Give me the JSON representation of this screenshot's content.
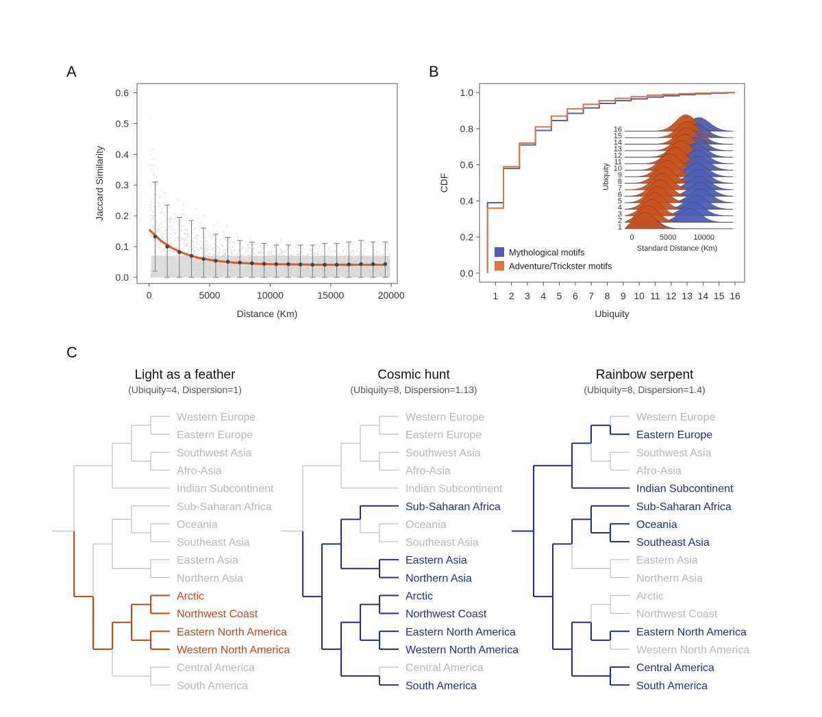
{
  "colors": {
    "orange": "#e25a1c",
    "orange_dark": "#c9450e",
    "blue": "#1f2f8a",
    "blue_fill": "#4d5fb4",
    "grey": "#bdbdbd",
    "leaf_grey": "#b8b8b8",
    "scatter": "#d0d0d0"
  },
  "panels": {
    "a": "A",
    "b": "B",
    "c": "C"
  },
  "chart_data": [
    {
      "id": "A",
      "type": "scatter",
      "title": "",
      "xlabel": "Distance (Km)",
      "ylabel": "Jaccard Similarity",
      "xlim": [
        -1000,
        20500
      ],
      "ylim": [
        -0.02,
        0.63
      ],
      "xticks": [
        0,
        5000,
        10000,
        15000,
        20000
      ],
      "xtick_labels": [
        "0",
        "5000",
        "10000",
        "15000",
        "20000"
      ],
      "yticks": [
        0.0,
        0.1,
        0.2,
        0.3,
        0.4,
        0.5,
        0.6
      ],
      "ytick_labels": [
        "0.0",
        "0.1",
        "0.2",
        "0.3",
        "0.4",
        "0.5",
        "0.6"
      ],
      "bins_x": [
        500,
        1500,
        2500,
        3500,
        4500,
        5500,
        6500,
        7500,
        8500,
        9500,
        10500,
        11500,
        12500,
        13500,
        14500,
        15500,
        16500,
        17500,
        18500,
        19500
      ],
      "bins_mean": [
        0.133,
        0.1,
        0.082,
        0.07,
        0.06,
        0.054,
        0.051,
        0.048,
        0.046,
        0.044,
        0.043,
        0.043,
        0.042,
        0.041,
        0.041,
        0.041,
        0.042,
        0.043,
        0.043,
        0.043
      ],
      "bins_upper": [
        0.31,
        0.235,
        0.195,
        0.185,
        0.16,
        0.14,
        0.13,
        0.12,
        0.115,
        0.11,
        0.105,
        0.105,
        0.105,
        0.105,
        0.11,
        0.11,
        0.115,
        0.12,
        0.115,
        0.115
      ],
      "bins_lower": [
        0.02,
        0.0,
        0.0,
        0.0,
        0.0,
        0.0,
        0.0,
        0.0,
        0.0,
        0.0,
        0.0,
        0.0,
        0.0,
        0.0,
        0.0,
        0.0,
        0.0,
        0.0,
        0.0,
        0.0
      ],
      "fit_curve": {
        "x": [
          0,
          1000,
          2000,
          3000,
          4000,
          5000,
          6000,
          7000,
          8000,
          9000,
          10000,
          12000,
          14000,
          16000,
          18000,
          19500
        ],
        "y": [
          0.155,
          0.118,
          0.093,
          0.076,
          0.064,
          0.057,
          0.052,
          0.048,
          0.046,
          0.044,
          0.043,
          0.042,
          0.041,
          0.041,
          0.041,
          0.041
        ]
      }
    },
    {
      "id": "B",
      "type": "line",
      "title": "",
      "xlabel": "Ubiquity",
      "ylabel": "CDF",
      "xlim": [
        0,
        16.6
      ],
      "ylim": [
        -0.05,
        1.05
      ],
      "categories": [
        "1",
        "2",
        "3",
        "4",
        "5",
        "6",
        "7",
        "8",
        "9",
        "10",
        "11",
        "12",
        "13",
        "14",
        "15",
        "16"
      ],
      "yticks": [
        0.0,
        0.2,
        0.4,
        0.6,
        0.8,
        1.0
      ],
      "ytick_labels": [
        "0.0",
        "0.2",
        "0.4",
        "0.6",
        "0.8",
        "1.0"
      ],
      "series": [
        {
          "name": "Mythological motifs",
          "color": "#4d5fb4",
          "values": [
            0.39,
            0.58,
            0.71,
            0.79,
            0.845,
            0.885,
            0.915,
            0.94,
            0.955,
            0.965,
            0.975,
            0.982,
            0.988,
            0.993,
            0.997,
            1.0
          ]
        },
        {
          "name": "Adventure/Trickster motifs",
          "color": "#e0743d",
          "values": [
            0.36,
            0.59,
            0.72,
            0.81,
            0.87,
            0.91,
            0.935,
            0.955,
            0.968,
            0.977,
            0.985,
            0.99,
            0.994,
            0.997,
            0.999,
            1.0
          ]
        }
      ],
      "inset": {
        "type": "ridgeline",
        "xlabel": "Standard Distance (Km)",
        "ylabel": "Ubiquity",
        "xlim": [
          -1000,
          14500
        ],
        "xticks": [
          0,
          5000,
          10000
        ],
        "xtick_labels": [
          "0",
          "5000",
          "10000"
        ],
        "rows": [
          "1",
          "2",
          "3",
          "4",
          "5",
          "6",
          "7",
          "8",
          "9",
          "10",
          "11",
          "12",
          "13",
          "14",
          "15",
          "16"
        ],
        "orange_peak": [
          1800,
          2300,
          2800,
          3200,
          3600,
          3900,
          4200,
          4500,
          4900,
          5300,
          6000,
          6800,
          7300,
          7600,
          7700,
          7500
        ],
        "blue_peak": [
          2000,
          8000,
          8500,
          9000,
          9500,
          9500,
          9300,
          9200,
          9000,
          9200,
          9000,
          8800,
          8700,
          8600,
          8900,
          9300
        ]
      }
    }
  ],
  "trees": [
    {
      "title": "Light as a feather",
      "subtitle": "(Ubiquity=4, Dispersion=1)",
      "highlight": "orange",
      "leaves": [
        {
          "label": "Western Europe",
          "on": false
        },
        {
          "label": "Eastern Europe",
          "on": false
        },
        {
          "label": "Southwest Asia",
          "on": false
        },
        {
          "label": "Afro-Asia",
          "on": false
        },
        {
          "label": "Indian Subcontinent",
          "on": false
        },
        {
          "label": "Sub-Saharan Africa",
          "on": false
        },
        {
          "label": "Oceania",
          "on": false
        },
        {
          "label": "Southeast Asia",
          "on": false
        },
        {
          "label": "Eastern Asia",
          "on": false
        },
        {
          "label": "Northern Asia",
          "on": false
        },
        {
          "label": "Arctic",
          "on": true
        },
        {
          "label": "Northwest Coast",
          "on": true
        },
        {
          "label": "Eastern North America",
          "on": true
        },
        {
          "label": "Western North America",
          "on": true
        },
        {
          "label": "Central America",
          "on": false
        },
        {
          "label": "South America",
          "on": false
        }
      ]
    },
    {
      "title": "Cosmic hunt",
      "subtitle": "(Ubiquity=8, Dispersion=1.13)",
      "highlight": "blue",
      "leaves": [
        {
          "label": "Western Europe",
          "on": false
        },
        {
          "label": "Eastern Europe",
          "on": false
        },
        {
          "label": "Southwest Asia",
          "on": false
        },
        {
          "label": "Afro-Asia",
          "on": false
        },
        {
          "label": "Indian Subcontinent",
          "on": false
        },
        {
          "label": "Sub-Saharan Africa",
          "on": true
        },
        {
          "label": "Oceania",
          "on": false
        },
        {
          "label": "Southeast Asia",
          "on": false
        },
        {
          "label": "Eastern Asia",
          "on": true
        },
        {
          "label": "Northern Asia",
          "on": true
        },
        {
          "label": "Arctic",
          "on": true
        },
        {
          "label": "Northwest Coast",
          "on": true
        },
        {
          "label": "Eastern North America",
          "on": true
        },
        {
          "label": "Western North America",
          "on": true
        },
        {
          "label": "Central America",
          "on": false
        },
        {
          "label": "South America",
          "on": true
        }
      ]
    },
    {
      "title": "Rainbow serpent",
      "subtitle": "(Ubiquity=8, Dispersion=1.4)",
      "highlight": "blue",
      "leaves": [
        {
          "label": "Western Europe",
          "on": false
        },
        {
          "label": "Eastern Europe",
          "on": true
        },
        {
          "label": "Southwest Asia",
          "on": false
        },
        {
          "label": "Afro-Asia",
          "on": false
        },
        {
          "label": "Indian Subcontinent",
          "on": true
        },
        {
          "label": "Sub-Saharan Africa",
          "on": true
        },
        {
          "label": "Oceania",
          "on": true
        },
        {
          "label": "Southeast Asia",
          "on": true
        },
        {
          "label": "Eastern Asia",
          "on": false
        },
        {
          "label": "Northern Asia",
          "on": false
        },
        {
          "label": "Arctic",
          "on": false
        },
        {
          "label": "Northwest Coast",
          "on": false
        },
        {
          "label": "Eastern North America",
          "on": true
        },
        {
          "label": "Western North America",
          "on": false
        },
        {
          "label": "Central America",
          "on": true
        },
        {
          "label": "South America",
          "on": true
        }
      ]
    }
  ]
}
